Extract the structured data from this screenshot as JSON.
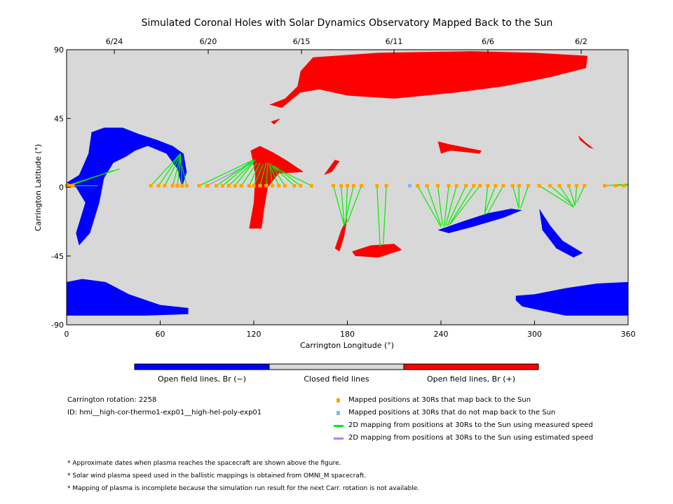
{
  "chart_data": {
    "type": "scatter",
    "title": "Simulated Coronal Holes with Solar Dynamics Observatory Mapped Back to the Sun",
    "xlabel": "Carrington Longitude (°)",
    "ylabel": "Carrington Latitude (°)",
    "xlim": [
      0,
      360
    ],
    "ylim": [
      -90,
      90
    ],
    "xticks": [
      "0",
      "60",
      "120",
      "180",
      "240",
      "300",
      "360"
    ],
    "yticks": [
      "90",
      "45",
      "0",
      "-45",
      "-90"
    ],
    "top_dates": [
      {
        "label": "6/24",
        "lon": 30.6
      },
      {
        "label": "6/20",
        "lon": 90.8
      },
      {
        "label": "6/15",
        "lon": 150.6
      },
      {
        "label": "6/11",
        "lon": 209.9
      },
      {
        "label": "6/6",
        "lon": 270.1
      },
      {
        "label": "6/2",
        "lon": 329.9
      }
    ],
    "colors": {
      "negative": "#0000ff",
      "closed": "#d8d8d8",
      "positive": "#ff0000",
      "mapped": "#ffa500",
      "unmapped": "#80b8f0",
      "measured": "#00ee00",
      "estimated": "#b080f0"
    },
    "holes": [
      {
        "polarity": "positive",
        "points": [
          [
            130,
            54
          ],
          [
            140,
            58
          ],
          [
            148,
            66
          ],
          [
            150,
            76
          ],
          [
            158,
            85
          ],
          [
            200,
            88
          ],
          [
            260,
            89
          ],
          [
            300,
            88
          ],
          [
            334,
            86
          ],
          [
            333,
            78
          ],
          [
            310,
            72
          ],
          [
            280,
            66
          ],
          [
            250,
            62
          ],
          [
            230,
            60
          ],
          [
            210,
            58
          ],
          [
            180,
            60
          ],
          [
            162,
            64
          ],
          [
            150,
            62
          ],
          [
            138,
            52
          ]
        ]
      },
      {
        "polarity": "negative",
        "points": [
          [
            0,
            -62
          ],
          [
            10,
            -60
          ],
          [
            25,
            -62
          ],
          [
            40,
            -70
          ],
          [
            60,
            -77
          ],
          [
            78,
            -79
          ],
          [
            78,
            -83
          ],
          [
            50,
            -84
          ],
          [
            0,
            -84
          ]
        ]
      },
      {
        "polarity": "negative",
        "points": [
          [
            288,
            -71
          ],
          [
            300,
            -70
          ],
          [
            320,
            -66
          ],
          [
            340,
            -63
          ],
          [
            360,
            -62
          ],
          [
            360,
            -84
          ],
          [
            320,
            -84
          ],
          [
            292,
            -78
          ],
          [
            288,
            -74
          ]
        ]
      },
      {
        "polarity": "negative",
        "points": [
          [
            0,
            3
          ],
          [
            8,
            8
          ],
          [
            14,
            22
          ],
          [
            16,
            36
          ],
          [
            24,
            39
          ],
          [
            36,
            39
          ],
          [
            46,
            35
          ],
          [
            58,
            31
          ],
          [
            68,
            27
          ],
          [
            75,
            22
          ],
          [
            77,
            10
          ],
          [
            74,
            0
          ],
          [
            71,
            12
          ],
          [
            64,
            22
          ],
          [
            52,
            27
          ],
          [
            44,
            24
          ],
          [
            38,
            20
          ],
          [
            30,
            16
          ],
          [
            24,
            6
          ],
          [
            21,
            -10
          ],
          [
            15,
            -30
          ],
          [
            8,
            -38
          ],
          [
            6,
            -30
          ],
          [
            12,
            -10
          ],
          [
            6,
            0
          ]
        ]
      },
      {
        "polarity": "positive",
        "points": [
          [
            118,
            24
          ],
          [
            124,
            27
          ],
          [
            132,
            23
          ],
          [
            142,
            17
          ],
          [
            152,
            10
          ],
          [
            136,
            9
          ],
          [
            129,
            0
          ],
          [
            127,
            -12
          ],
          [
            125,
            -27
          ],
          [
            117,
            -27
          ],
          [
            120,
            -10
          ],
          [
            121,
            8
          ]
        ]
      },
      {
        "polarity": "positive",
        "points": [
          [
            172,
            -40
          ],
          [
            176,
            -28
          ],
          [
            180,
            -20
          ],
          [
            178,
            -32
          ],
          [
            175,
            -42
          ]
        ]
      },
      {
        "polarity": "positive",
        "points": [
          [
            183,
            -42
          ],
          [
            195,
            -38
          ],
          [
            210,
            -37
          ],
          [
            215,
            -41
          ],
          [
            200,
            -46
          ],
          [
            185,
            -45
          ]
        ]
      },
      {
        "polarity": "positive",
        "points": [
          [
            238,
            30
          ],
          [
            246,
            28
          ],
          [
            266,
            24
          ],
          [
            265,
            22
          ],
          [
            246,
            24
          ],
          [
            240,
            22
          ]
        ]
      },
      {
        "polarity": "positive",
        "points": [
          [
            328,
            34
          ],
          [
            332,
            30
          ],
          [
            338,
            25
          ],
          [
            335,
            26
          ],
          [
            329,
            31
          ]
        ]
      },
      {
        "polarity": "positive",
        "points": [
          [
            165,
            8
          ],
          [
            172,
            18
          ],
          [
            175,
            17
          ],
          [
            170,
            10
          ]
        ]
      },
      {
        "polarity": "positive",
        "points": [
          [
            131,
            43
          ],
          [
            137,
            45
          ],
          [
            133,
            41
          ]
        ]
      },
      {
        "polarity": "negative",
        "points": [
          [
            238,
            -28
          ],
          [
            255,
            -22
          ],
          [
            270,
            -17
          ],
          [
            285,
            -14
          ],
          [
            292,
            -15
          ],
          [
            280,
            -20
          ],
          [
            260,
            -26
          ],
          [
            245,
            -30
          ]
        ]
      },
      {
        "polarity": "negative",
        "points": [
          [
            303,
            -14
          ],
          [
            310,
            -25
          ],
          [
            318,
            -35
          ],
          [
            331,
            -43
          ],
          [
            325,
            -46
          ],
          [
            314,
            -40
          ],
          [
            305,
            -28
          ]
        ]
      }
    ],
    "mappings": [
      {
        "lon30": 0,
        "sun": [
          34,
          12
        ],
        "type": "measured"
      },
      {
        "lon30": 2,
        "sun": [
          30,
          11
        ],
        "type": "measured"
      },
      {
        "lon30": 4,
        "sun": [
          20,
          1
        ],
        "type": "measured"
      },
      {
        "lon30": 54,
        "sun": [
          73,
          22
        ],
        "type": "measured"
      },
      {
        "lon30": 59,
        "sun": [
          73,
          22
        ],
        "type": "measured"
      },
      {
        "lon30": 63,
        "sun": [
          73,
          21
        ],
        "type": "measured"
      },
      {
        "lon30": 68,
        "sun": [
          73,
          20
        ],
        "type": "measured"
      },
      {
        "lon30": 71,
        "sun": [
          73,
          19
        ],
        "type": "measured"
      },
      {
        "lon30": 74,
        "sun": [
          73,
          22
        ],
        "type": "measured"
      },
      {
        "lon30": 77,
        "sun": [
          74,
          14
        ],
        "type": "measured"
      },
      {
        "lon30": 85,
        "sun": [
          120,
          18
        ],
        "type": "measured"
      },
      {
        "lon30": 90,
        "sun": [
          119,
          16
        ],
        "type": "estimated"
      },
      {
        "lon30": 96,
        "sun": [
          120,
          18
        ],
        "type": "measured"
      },
      {
        "lon30": 100,
        "sun": [
          120,
          18
        ],
        "type": "measured"
      },
      {
        "lon30": 104,
        "sun": [
          120,
          17
        ],
        "type": "measured"
      },
      {
        "lon30": 108,
        "sun": [
          121,
          18
        ],
        "type": "measured"
      },
      {
        "lon30": 112,
        "sun": [
          122,
          16
        ],
        "type": "measured"
      },
      {
        "lon30": 117,
        "sun": [
          124,
          16
        ],
        "type": "measured"
      },
      {
        "lon30": 120,
        "sun": [
          126,
          15
        ],
        "type": "measured"
      },
      {
        "lon30": 124,
        "sun": [
          128,
          16
        ],
        "type": "measured"
      },
      {
        "lon30": 128,
        "sun": [
          129,
          16
        ],
        "type": "measured"
      },
      {
        "lon30": 132,
        "sun": [
          130,
          16
        ],
        "type": "measured"
      },
      {
        "lon30": 136,
        "sun": [
          130,
          15
        ],
        "type": "measured"
      },
      {
        "lon30": 140,
        "sun": [
          131,
          15
        ],
        "type": "measured"
      },
      {
        "lon30": 146,
        "sun": [
          132,
          14
        ],
        "type": "measured"
      },
      {
        "lon30": 150,
        "sun": [
          133,
          14
        ],
        "type": "measured"
      },
      {
        "lon30": 157,
        "sun": [
          133,
          13
        ],
        "type": "measured"
      },
      {
        "lon30": 171,
        "sun": [
          178,
          -25
        ],
        "type": "measured"
      },
      {
        "lon30": 176,
        "sun": [
          178,
          -25
        ],
        "type": "measured"
      },
      {
        "lon30": 180,
        "sun": [
          179,
          -24
        ],
        "type": "measured"
      },
      {
        "lon30": 184,
        "sun": [
          178,
          -25
        ],
        "type": "measured"
      },
      {
        "lon30": 189,
        "sun": [
          180,
          -23
        ],
        "type": "measured"
      },
      {
        "lon30": 199,
        "sun": [
          201,
          -39
        ],
        "type": "measured"
      },
      {
        "lon30": 205,
        "sun": [
          203,
          -38
        ],
        "type": "measured"
      },
      {
        "lon30": 225,
        "sun": [
          240,
          -26
        ],
        "type": "measured"
      },
      {
        "lon30": 231,
        "sun": [
          240,
          -25
        ],
        "type": "measured"
      },
      {
        "lon30": 238,
        "sun": [
          241,
          -25
        ],
        "type": "measured"
      },
      {
        "lon30": 245,
        "sun": [
          242,
          -26
        ],
        "type": "measured"
      },
      {
        "lon30": 250,
        "sun": [
          243,
          -25
        ],
        "type": "measured"
      },
      {
        "lon30": 256,
        "sun": [
          244,
          -25
        ],
        "type": "measured"
      },
      {
        "lon30": 261,
        "sun": [
          245,
          -25
        ],
        "type": "measured"
      },
      {
        "lon30": 265,
        "sun": [
          246,
          -24
        ],
        "type": "measured"
      },
      {
        "lon30": 270,
        "sun": [
          268,
          -18
        ],
        "type": "measured"
      },
      {
        "lon30": 275,
        "sun": [
          268,
          -17
        ],
        "type": "measured"
      },
      {
        "lon30": 280,
        "sun": [
          270,
          -17
        ],
        "type": "measured"
      },
      {
        "lon30": 286,
        "sun": [
          290,
          -14
        ],
        "type": "measured"
      },
      {
        "lon30": 290,
        "sun": [
          290,
          -13
        ],
        "type": "measured"
      },
      {
        "lon30": 296,
        "sun": [
          291,
          -14
        ],
        "type": "measured"
      },
      {
        "lon30": 303,
        "sun": [
          325,
          -13
        ],
        "type": "measured"
      },
      {
        "lon30": 310,
        "sun": [
          325,
          -12
        ],
        "type": "measured"
      },
      {
        "lon30": 316,
        "sun": [
          325,
          -13
        ],
        "type": "measured"
      },
      {
        "lon30": 322,
        "sun": [
          326,
          -12
        ],
        "type": "measured"
      },
      {
        "lon30": 327,
        "sun": [
          326,
          -12
        ],
        "type": "measured"
      },
      {
        "lon30": 332,
        "sun": [
          327,
          -10
        ],
        "type": "measured"
      },
      {
        "lon30": 345,
        "sun": [
          360,
          2
        ],
        "type": "measured"
      },
      {
        "lon30": 352,
        "sun": [
          360,
          2
        ],
        "type": "measured"
      },
      {
        "lon30": 357,
        "sun": [
          360,
          1
        ],
        "type": "measured"
      }
    ],
    "unmapped": [
      220
    ]
  },
  "colorbar": {
    "labels": [
      "Open field lines, Br (−)",
      "Closed field lines",
      "Open field lines, Br (+)"
    ]
  },
  "info": {
    "rotation": "Carrington rotation: 2258",
    "id": "ID: hmi__high-cor-thermo1-exp01__high-hel-poly-exp01"
  },
  "legend": [
    {
      "label": "Mapped positions at 30Rs that map back to the Sun",
      "color": "#ffa500",
      "kind": "square"
    },
    {
      "label": "Mapped positions at 30Rs that do not map back to the Sun",
      "color": "#80b8f0",
      "kind": "square"
    },
    {
      "label": "2D mapping from positions at 30Rs to the Sun using measured speed",
      "color": "#00ee00",
      "kind": "line"
    },
    {
      "label": "2D mapping from positions at 30Rs to the Sun using estimated speed",
      "color": "#b080f0",
      "kind": "line"
    }
  ],
  "notes": [
    "* Approximate dates when plasma reaches the spacecraft are shown above the figure.",
    "* Solar wind plasma speed used in the ballistic mappings is obtained from OMNI_M spacecraft.",
    "* Mapping of plasma is incomplete because the simulation run result for the next Carr. rotation is not available."
  ]
}
